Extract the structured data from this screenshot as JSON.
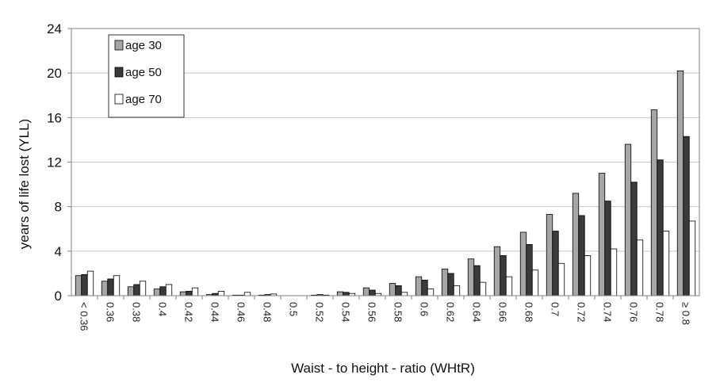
{
  "chart_data": {
    "type": "bar",
    "title": "",
    "xlabel": "Waist - to height - ratio (WHtR)",
    "ylabel": "years of life lost (YLL)",
    "ylim": [
      0,
      24
    ],
    "yticks": [
      0,
      4,
      8,
      12,
      16,
      20,
      24
    ],
    "grid": true,
    "legend_position": "top-left",
    "categories": [
      "< 0.36",
      "0.36",
      "0.38",
      "0.4",
      "0.42",
      "0.44",
      "0.46",
      "0.48",
      "0.5",
      "0.52",
      "0.54",
      "0.56",
      "0.58",
      "0.6",
      "0.62",
      "0.64",
      "0.66",
      "0.68",
      "0.7",
      "0.72",
      "0.74",
      "0.76",
      "0.78",
      "≥ 0.8"
    ],
    "series": [
      {
        "name": "age 30",
        "color": "#a6a6a6",
        "values": [
          1.8,
          1.3,
          0.8,
          0.6,
          0.35,
          0.1,
          0.05,
          0.05,
          0,
          0.05,
          0.35,
          0.7,
          1.1,
          1.7,
          2.4,
          3.3,
          4.4,
          5.7,
          7.3,
          9.2,
          11.0,
          13.6,
          16.7,
          20.2
        ]
      },
      {
        "name": "age 50",
        "color": "#3a3a3a",
        "values": [
          1.9,
          1.5,
          1.0,
          0.8,
          0.4,
          0.2,
          0.05,
          0.1,
          0,
          0.1,
          0.3,
          0.5,
          0.9,
          1.4,
          2.0,
          2.7,
          3.6,
          4.6,
          5.8,
          7.2,
          8.5,
          10.2,
          12.2,
          14.3
        ]
      },
      {
        "name": "age 70",
        "color": "#ffffff",
        "values": [
          2.2,
          1.8,
          1.3,
          1.0,
          0.7,
          0.4,
          0.3,
          0.15,
          0,
          0.05,
          0.2,
          0.2,
          0.3,
          0.6,
          0.9,
          1.2,
          1.7,
          2.3,
          2.9,
          3.6,
          4.2,
          5.0,
          5.8,
          6.7
        ]
      }
    ]
  }
}
